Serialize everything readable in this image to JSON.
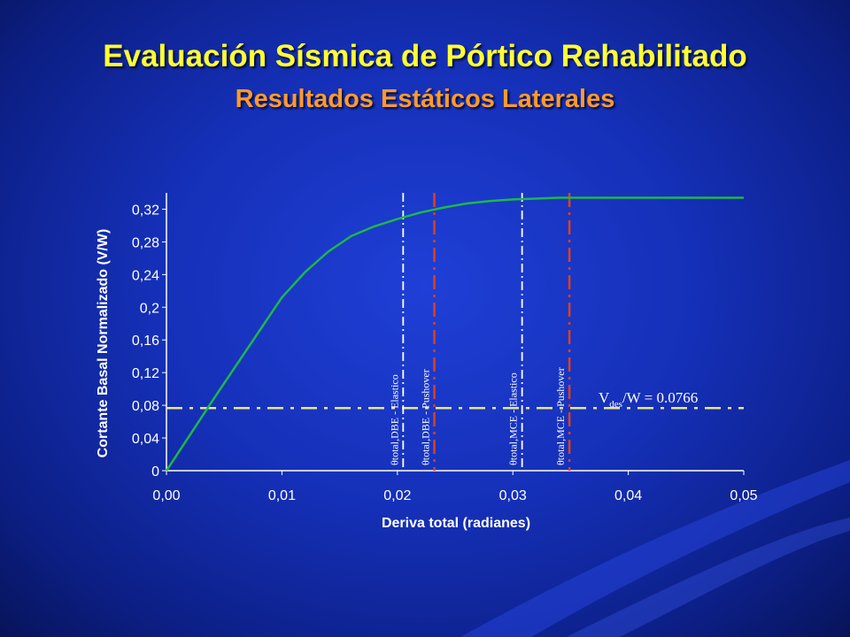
{
  "slide": {
    "title": "Evaluación Sísmica de Pórtico Rehabilitado",
    "subtitle": "Resultados Estáticos Laterales"
  },
  "colors": {
    "title": "#ffff33",
    "subtitle": "#ff9a2a",
    "curve": "#1db84a",
    "white_lines": "#ffffff",
    "red_lines": "#e0401a",
    "design_line": "#e8e88a"
  },
  "chart_data": {
    "type": "line",
    "xlabel": "Deriva total (radianes)",
    "ylabel": "Cortante Basal Normalizado (V/W)",
    "xlim": [
      0,
      0.05
    ],
    "ylim": [
      0,
      0.34
    ],
    "xticks": [
      "0,00",
      "0,01",
      "0,02",
      "0,03",
      "0,04",
      "0,05"
    ],
    "xtick_values": [
      0,
      0.01,
      0.02,
      0.03,
      0.04,
      0.05
    ],
    "yticks": [
      "0",
      "0,04",
      "0,08",
      "0,12",
      "0,16",
      "0,2",
      "0,24",
      "0,28",
      "0,32"
    ],
    "ytick_values": [
      0,
      0.04,
      0.08,
      0.12,
      0.16,
      0.2,
      0.24,
      0.28,
      0.32
    ],
    "series": [
      {
        "x": [
          0,
          0.002,
          0.004,
          0.006,
          0.008,
          0.01,
          0.012,
          0.014,
          0.016,
          0.018,
          0.02,
          0.022,
          0.024,
          0.026,
          0.028,
          0.03,
          0.032,
          0.034,
          0.036,
          0.04,
          0.045,
          0.05
        ],
        "y": [
          0,
          0.043,
          0.086,
          0.128,
          0.17,
          0.212,
          0.243,
          0.268,
          0.287,
          0.299,
          0.308,
          0.316,
          0.322,
          0.327,
          0.33,
          0.332,
          0.333,
          0.334,
          0.334,
          0.334,
          0.334,
          0.334
        ]
      }
    ],
    "vertical_lines": [
      {
        "x": 0.0205,
        "label": "θtotal,DBE - Elastico",
        "color": "#ffffff"
      },
      {
        "x": 0.0232,
        "label": "θtotal,DBE - Pushover",
        "color": "#e0401a"
      },
      {
        "x": 0.0308,
        "label": "θtotal,MCE - Elastico",
        "color": "#ffffff"
      },
      {
        "x": 0.0349,
        "label": "θtotal,MCE - Pushover",
        "color": "#e0401a"
      }
    ],
    "horizontal_lines": [
      {
        "y": 0.0766,
        "label": "Vdes/W = 0.0766"
      }
    ],
    "annotation": {
      "V": "V",
      "sub": "des",
      "rest": "/W = 0.0766"
    },
    "grid": false
  }
}
